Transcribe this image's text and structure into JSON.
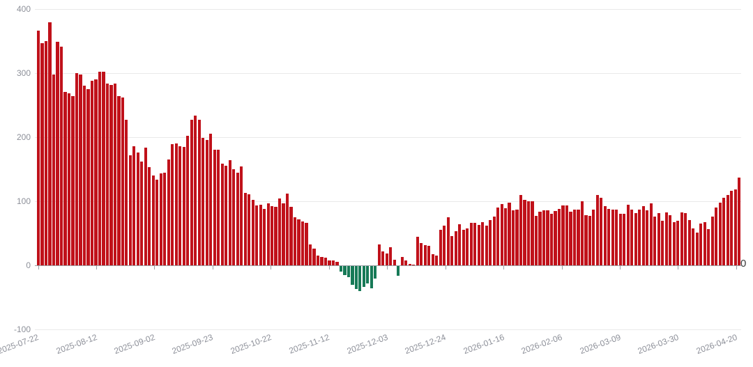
{
  "chart_data": {
    "type": "bar",
    "title": "",
    "xlabel": "",
    "ylabel": "",
    "ylim": [
      -100,
      400
    ],
    "y_ticks": [
      400,
      300,
      200,
      100,
      0,
      -100
    ],
    "grid": true,
    "legend": "none",
    "bar_color_positive": "#c0111a",
    "bar_color_negative": "#177a57",
    "axis_label_color": "#8d9099",
    "x_tick_labels": [
      "2025-07-22",
      "2025-08-12",
      "2025-09-02",
      "2025-09-23",
      "2025-10-22",
      "2025-11-12",
      "2025-12-03",
      "2025-12-24",
      "2026-01-16",
      "2026-02-06",
      "2026-03-09",
      "2026-03-30",
      "2026-04-20"
    ],
    "x_label_every_n_bars": 15,
    "right_zero_label": "0",
    "values": [
      367,
      347,
      350,
      380,
      298,
      349,
      341,
      271,
      269,
      264,
      300,
      298,
      281,
      275,
      288,
      290,
      302,
      302,
      284,
      282,
      284,
      264,
      262,
      227,
      172,
      186,
      176,
      162,
      184,
      153,
      140,
      134,
      144,
      145,
      165,
      189,
      190,
      186,
      185,
      202,
      227,
      234,
      227,
      199,
      196,
      205,
      181,
      181,
      159,
      156,
      164,
      150,
      145,
      154,
      113,
      111,
      102,
      93,
      95,
      88,
      97,
      92,
      91,
      104,
      97,
      112,
      91,
      75,
      72,
      68,
      66,
      33,
      26,
      15,
      13,
      12,
      8,
      7,
      5,
      -9,
      -14,
      -18,
      -30,
      -36,
      -39,
      -33,
      -27,
      -35,
      -20,
      33,
      22,
      18,
      28,
      9,
      -15,
      13,
      7,
      2,
      1,
      44,
      35,
      31,
      30,
      17,
      15,
      55,
      62,
      75,
      46,
      53,
      64,
      55,
      58,
      66,
      66,
      63,
      67,
      62,
      71,
      76,
      90,
      96,
      89,
      98,
      86,
      87,
      110,
      102,
      100,
      100,
      77,
      84,
      86,
      86,
      80,
      85,
      88,
      93,
      93,
      84,
      87,
      87,
      100,
      78,
      77,
      87,
      110,
      105,
      92,
      88,
      87,
      87,
      80,
      80,
      94,
      87,
      82,
      87,
      92,
      86,
      97,
      76,
      82,
      70,
      83,
      78,
      67,
      69,
      83,
      81,
      71,
      58,
      51,
      65,
      67,
      56,
      76,
      90,
      98,
      105,
      110,
      116,
      118,
      137
    ]
  }
}
